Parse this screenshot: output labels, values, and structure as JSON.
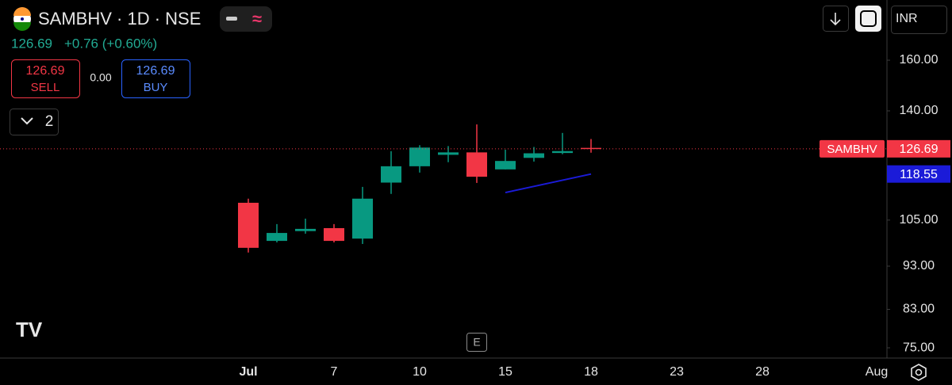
{
  "symbol_bar": {
    "title": "SAMBHV · 1D · NSE",
    "price": "126.69",
    "change": "+0.76 (+0.60%)"
  },
  "order_panel": {
    "sell_price": "126.69",
    "sell_label": "SELL",
    "spread": "0.00",
    "buy_price": "126.69",
    "buy_label": "BUY"
  },
  "indicators_toggle": "2",
  "currency": "INR",
  "events_marker": "E",
  "chart_data": {
    "type": "candlestick",
    "log_scale": true,
    "categories": [
      "Jul",
      null,
      null,
      "7",
      null,
      null,
      "10",
      null,
      null,
      "15",
      null,
      null,
      "18",
      null,
      null,
      "23",
      null,
      null,
      "28",
      null,
      null,
      null,
      "Aug"
    ],
    "series": [
      {
        "name": "SAMBHV",
        "open": [
          109.9,
          99.4,
          102.0,
          102.8,
          100.0,
          115.9,
          121.0,
          124.7,
          125.5,
          120.0,
          123.7,
          125.3,
          127.0,
          null,
          null,
          null,
          null,
          null,
          null,
          null,
          null,
          null,
          null
        ],
        "high": [
          111.1,
          103.9,
          105.4,
          103.9,
          114.6,
          125.9,
          127.9,
          127.6,
          135.1,
          126.4,
          127.3,
          132.1,
          130.0,
          null,
          null,
          null,
          null,
          null,
          null,
          null,
          null,
          null,
          null
        ],
        "low": [
          96.4,
          99.0,
          101.3,
          99.0,
          98.6,
          112.5,
          119.0,
          122.3,
          115.8,
          120.0,
          122.5,
          124.9,
          125.4,
          null,
          null,
          null,
          null,
          null,
          null,
          null,
          null,
          null,
          null
        ],
        "close": [
          97.6,
          101.5,
          102.6,
          99.4,
          111.1,
          121.0,
          127.1,
          125.5,
          117.7,
          122.7,
          125.2,
          125.93,
          126.69,
          null,
          null,
          null,
          null,
          null,
          null,
          null,
          null,
          null,
          null
        ]
      }
    ],
    "up_color": "#089981",
    "down_color": "#f23645",
    "ylim": [
      73,
      187.5
    ],
    "yticks": [
      {
        "value": 160,
        "label": "160.00"
      },
      {
        "value": 140,
        "label": "140.00"
      },
      {
        "value": 105,
        "label": "105.00"
      },
      {
        "value": 93,
        "label": "93.00"
      },
      {
        "value": 83,
        "label": "83.00"
      },
      {
        "value": 75,
        "label": "75.00"
      }
    ],
    "trendline": {
      "color": "#1b1bd8",
      "x": [
        9,
        12
      ],
      "values": [
        112.9,
        118.55
      ]
    }
  }
}
